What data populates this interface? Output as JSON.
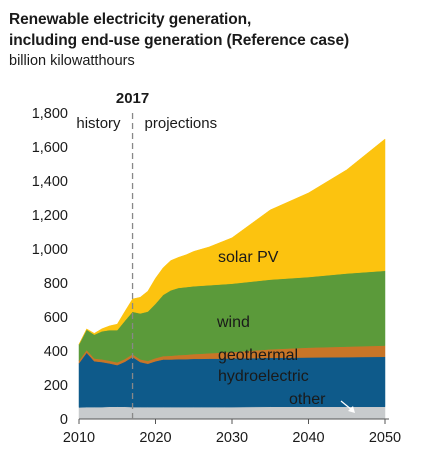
{
  "title_line1": "Renewable electricity generation,",
  "title_line2": "including end-use generation (Reference case)",
  "units": "billion kilowatthours",
  "chart_data": {
    "type": "area",
    "stacked": true,
    "x": [
      2010,
      2011,
      2012,
      2013,
      2014,
      2015,
      2016,
      2017,
      2018,
      2019,
      2020,
      2021,
      2022,
      2023,
      2024,
      2025,
      2026,
      2027,
      2028,
      2029,
      2030,
      2035,
      2040,
      2045,
      2050
    ],
    "series": [
      {
        "name": "other",
        "color": "#c8cbcd",
        "values": [
          68,
          70,
          70,
          70,
          72,
          72,
          72,
          70,
          70,
          70,
          70,
          70,
          70,
          70,
          70,
          70,
          70,
          70,
          70,
          70,
          70,
          72,
          72,
          72,
          72
        ]
      },
      {
        "name": "hydroelectric",
        "color": "#0e5a8a",
        "values": [
          260,
          320,
          270,
          265,
          255,
          245,
          265,
          295,
          265,
          255,
          270,
          280,
          280,
          282,
          282,
          284,
          284,
          285,
          285,
          286,
          286,
          288,
          290,
          292,
          294
        ]
      },
      {
        "name": "geothermal",
        "color": "#c87527",
        "values": [
          15,
          16,
          16,
          16,
          16,
          16,
          16,
          16,
          16,
          17,
          18,
          20,
          22,
          24,
          26,
          28,
          30,
          32,
          34,
          36,
          38,
          50,
          58,
          62,
          66
        ]
      },
      {
        "name": "wind",
        "color": "#5b9a3a",
        "values": [
          95,
          120,
          140,
          165,
          180,
          190,
          225,
          250,
          270,
          290,
          320,
          360,
          385,
          395,
          398,
          399,
          400,
          400,
          401,
          401,
          402,
          410,
          415,
          430,
          440
        ]
      },
      {
        "name": "solar PV",
        "color": "#fcc30f",
        "values": [
          2,
          4,
          8,
          15,
          25,
          35,
          55,
          75,
          95,
          120,
          150,
          160,
          175,
          180,
          190,
          205,
          215,
          225,
          240,
          255,
          270,
          410,
          495,
          610,
          775
        ]
      }
    ],
    "xlim": [
      2010,
      2050
    ],
    "ylim": [
      0,
      1800
    ],
    "xticks": [
      2010,
      2020,
      2030,
      2040,
      2050
    ],
    "yticks": [
      0,
      200,
      400,
      600,
      800,
      1000,
      1200,
      1400,
      1600,
      1800
    ],
    "ytick_labels": [
      "0",
      "200",
      "400",
      "600",
      "800",
      "1,000",
      "1,200",
      "1,400",
      "1,600",
      "1,800"
    ],
    "divider": {
      "year": 2017,
      "label": "2017",
      "left_label": "history",
      "right_label": "projections"
    },
    "series_labels": {
      "solar": "solar PV",
      "wind": "wind",
      "geothermal": "geothermal",
      "hydro": "hydroelectric",
      "other": "other"
    },
    "grid": false,
    "legend": "inline labels"
  }
}
